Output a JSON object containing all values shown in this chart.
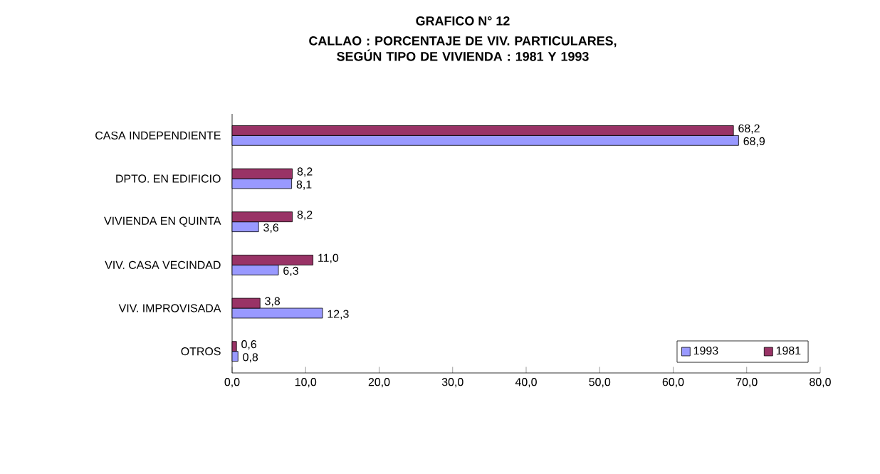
{
  "chart_data": {
    "type": "bar",
    "orientation": "horizontal",
    "title": "GRAFICO N° 12",
    "subtitle": "CALLAO : PORCENTAJE DE VIV. PARTICULARES, SEGÚN TIPO DE VIVIENDA : 1981 Y 1993",
    "categories": [
      "CASA INDEPENDIENTE",
      "DPTO. EN EDIFICIO",
      "VIVIENDA EN QUINTA",
      "VIV. CASA VECINDAD",
      "VIV. IMPROVISADA",
      "OTROS"
    ],
    "series": [
      {
        "name": "1993",
        "color": "#9999ff",
        "values": [
          68.9,
          8.1,
          3.6,
          6.3,
          12.3,
          0.8
        ],
        "value_labels": [
          "68,9",
          "8,1",
          "3,6",
          "6,3",
          "12,3",
          "0,8"
        ]
      },
      {
        "name": "1981",
        "color": "#993366",
        "values": [
          68.2,
          8.2,
          8.2,
          11.0,
          3.8,
          0.6
        ],
        "value_labels": [
          "68,2",
          "8,2",
          "8,2",
          "11,0",
          "3,8",
          "0,6"
        ]
      }
    ],
    "xlim": [
      0,
      80
    ],
    "xticks": [
      {
        "value": 0,
        "label": "0,0"
      },
      {
        "value": 10,
        "label": "10,0"
      },
      {
        "value": 20,
        "label": "20,0"
      },
      {
        "value": 30,
        "label": "30,0"
      },
      {
        "value": 40,
        "label": "40,0"
      },
      {
        "value": 50,
        "label": "50,0"
      },
      {
        "value": 60,
        "label": "60,0"
      },
      {
        "value": 70,
        "label": "70,0"
      },
      {
        "value": 80,
        "label": "80,0"
      }
    ],
    "legend": "bottom right",
    "grid": false
  }
}
